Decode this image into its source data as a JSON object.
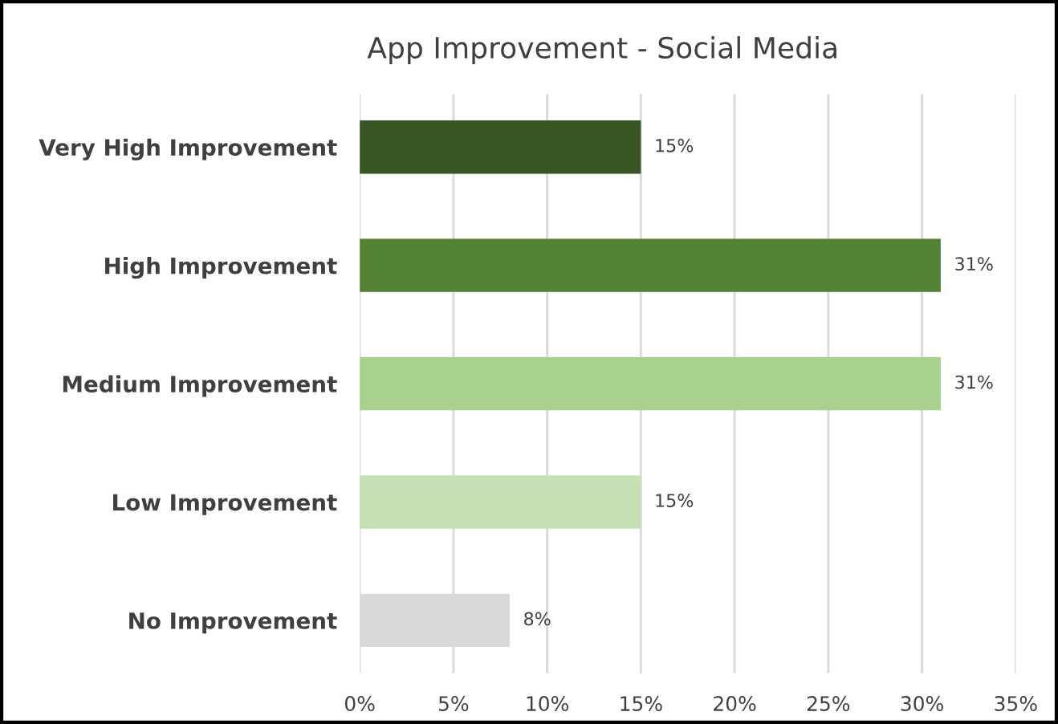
{
  "chart_data": {
    "type": "bar",
    "orientation": "horizontal",
    "title": "App Improvement - Social Media",
    "categories": [
      "Very High Improvement",
      "High Improvement",
      "Medium Improvement",
      "Low Improvement",
      "No Improvement"
    ],
    "values": [
      15,
      31,
      31,
      15,
      8
    ],
    "colors": [
      "#375623",
      "#548235",
      "#a9d18e",
      "#c5e0b4",
      "#d9d9d9"
    ],
    "value_labels": [
      "15%",
      "31%",
      "31%",
      "15%",
      "8%"
    ],
    "xlim": [
      0,
      35
    ],
    "xticks": [
      {
        "value": 0,
        "label": "0%"
      },
      {
        "value": 5,
        "label": "5%"
      },
      {
        "value": 10,
        "label": "10%"
      },
      {
        "value": 15,
        "label": "15%"
      },
      {
        "value": 20,
        "label": "20%"
      },
      {
        "value": 25,
        "label": "25%"
      },
      {
        "value": 30,
        "label": "30%"
      },
      {
        "value": 35,
        "label": "35%"
      }
    ],
    "grid": "x"
  }
}
